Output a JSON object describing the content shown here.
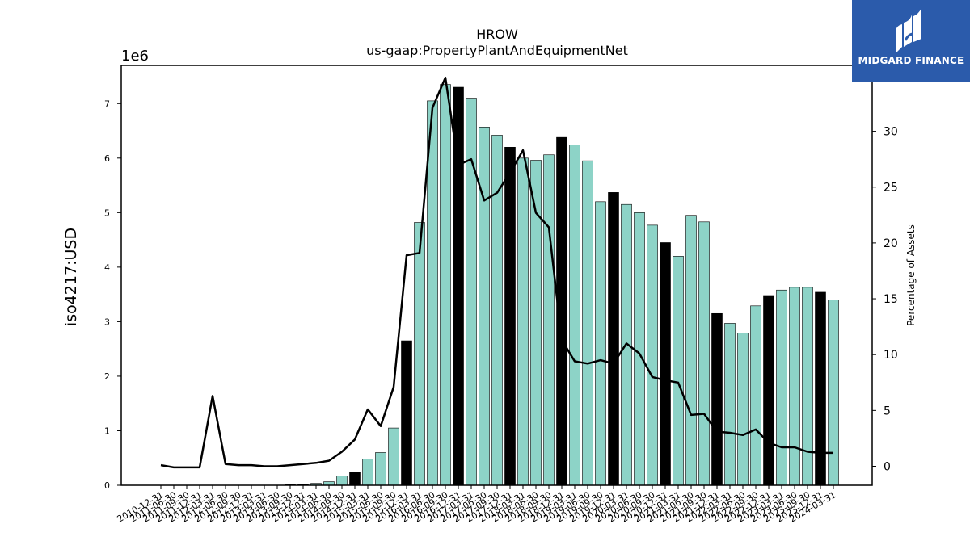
{
  "chart_data": {
    "type": "bar",
    "title": "HROW",
    "subtitle": "us-gaap:PropertyPlantAndEquipmentNet",
    "ylabel": "iso4217:USD",
    "y_offset_text": "1e6",
    "y2label": "Percentage of Assets",
    "ylim": [
      0,
      7700000
    ],
    "y2lim": [
      -1.7,
      35.9
    ],
    "yticks": [
      "0",
      "1",
      "2",
      "3",
      "4",
      "5",
      "6",
      "7"
    ],
    "y2ticks": [
      "0",
      "5",
      "10",
      "15",
      "20",
      "25",
      "30"
    ],
    "grid": false,
    "colors": {
      "bar": "#8dd3c7",
      "highlight_bar": "#000000",
      "line": "#000000",
      "edge": "#000000"
    },
    "categories": [
      "2010-12-31",
      "2011-06-30",
      "2011-09-30",
      "2011-12-31",
      "2012-03-31",
      "2012-06-30",
      "2012-09-30",
      "2012-12-31",
      "2013-03-31",
      "2013-06-30",
      "2013-09-30",
      "2013-12-31",
      "2014-03-31",
      "2014-06-30",
      "2014-09-30",
      "2014-12-31",
      "2015-03-31",
      "2015-06-30",
      "2015-09-30",
      "2015-12-31",
      "2016-03-31",
      "2016-06-30",
      "2016-09-30",
      "2016-12-31",
      "2017-03-31",
      "2017-06-30",
      "2017-09-30",
      "2017-12-31",
      "2018-03-31",
      "2018-06-30",
      "2018-09-30",
      "2018-12-31",
      "2019-03-31",
      "2019-06-30",
      "2019-09-30",
      "2019-12-31",
      "2020-03-31",
      "2020-06-30",
      "2020-09-30",
      "2020-12-31",
      "2021-03-31",
      "2021-06-30",
      "2021-09-30",
      "2021-12-31",
      "2022-03-31",
      "2022-06-30",
      "2022-09-30",
      "2022-12-31",
      "2023-03-31",
      "2023-06-30",
      "2023-09-30",
      "2023-12-31",
      "2024-03-31"
    ],
    "series": [
      {
        "type": "bar",
        "values": [
          0,
          0,
          0,
          0,
          0,
          0,
          0,
          0,
          0,
          0,
          12000,
          18000,
          35000,
          65000,
          170000,
          240000,
          480000,
          600000,
          1050000,
          2650000,
          4820000,
          7050000,
          7350000,
          7300000,
          7100000,
          6570000,
          6420000,
          6200000,
          6000000,
          5960000,
          6060000,
          6380000,
          6240000,
          5950000,
          5200000,
          5370000,
          5150000,
          5000000,
          4770000,
          4450000,
          4200000,
          4950000,
          4830000,
          3150000,
          2970000,
          2790000,
          3290000,
          3480000,
          3580000,
          3630000,
          3630000,
          3540000,
          3400000
        ],
        "highlighted": [
          false,
          false,
          false,
          true,
          false,
          false,
          false,
          true,
          false,
          false,
          false,
          true,
          false,
          false,
          false,
          true,
          false,
          false,
          false,
          true,
          false,
          false,
          false,
          true,
          false,
          false,
          false,
          true,
          false,
          false,
          false,
          true,
          false,
          false,
          false,
          true,
          false,
          false,
          false,
          true,
          false,
          false,
          false,
          true,
          false,
          false,
          false,
          true,
          false,
          false,
          false,
          true,
          false
        ]
      },
      {
        "type": "line",
        "axis": "right",
        "values": [
          0.1,
          -0.1,
          -0.1,
          -0.1,
          6.3,
          0.2,
          0.1,
          0.1,
          0.0,
          0.0,
          0.1,
          0.2,
          0.3,
          0.5,
          1.3,
          2.4,
          5.1,
          3.6,
          7.1,
          18.9,
          19.1,
          32.1,
          34.8,
          27.0,
          27.5,
          23.8,
          24.5,
          26.3,
          28.3,
          22.7,
          21.4,
          11.3,
          9.4,
          9.2,
          9.5,
          9.2,
          11.0,
          10.1,
          8.0,
          7.7,
          7.5,
          4.6,
          4.7,
          3.1,
          3.0,
          2.8,
          3.3,
          2.1,
          1.7,
          1.7,
          1.3,
          1.2,
          1.2
        ]
      }
    ]
  },
  "logo": {
    "text": "MIDGARD FINANCE",
    "icon": "midgard-logo-icon"
  }
}
